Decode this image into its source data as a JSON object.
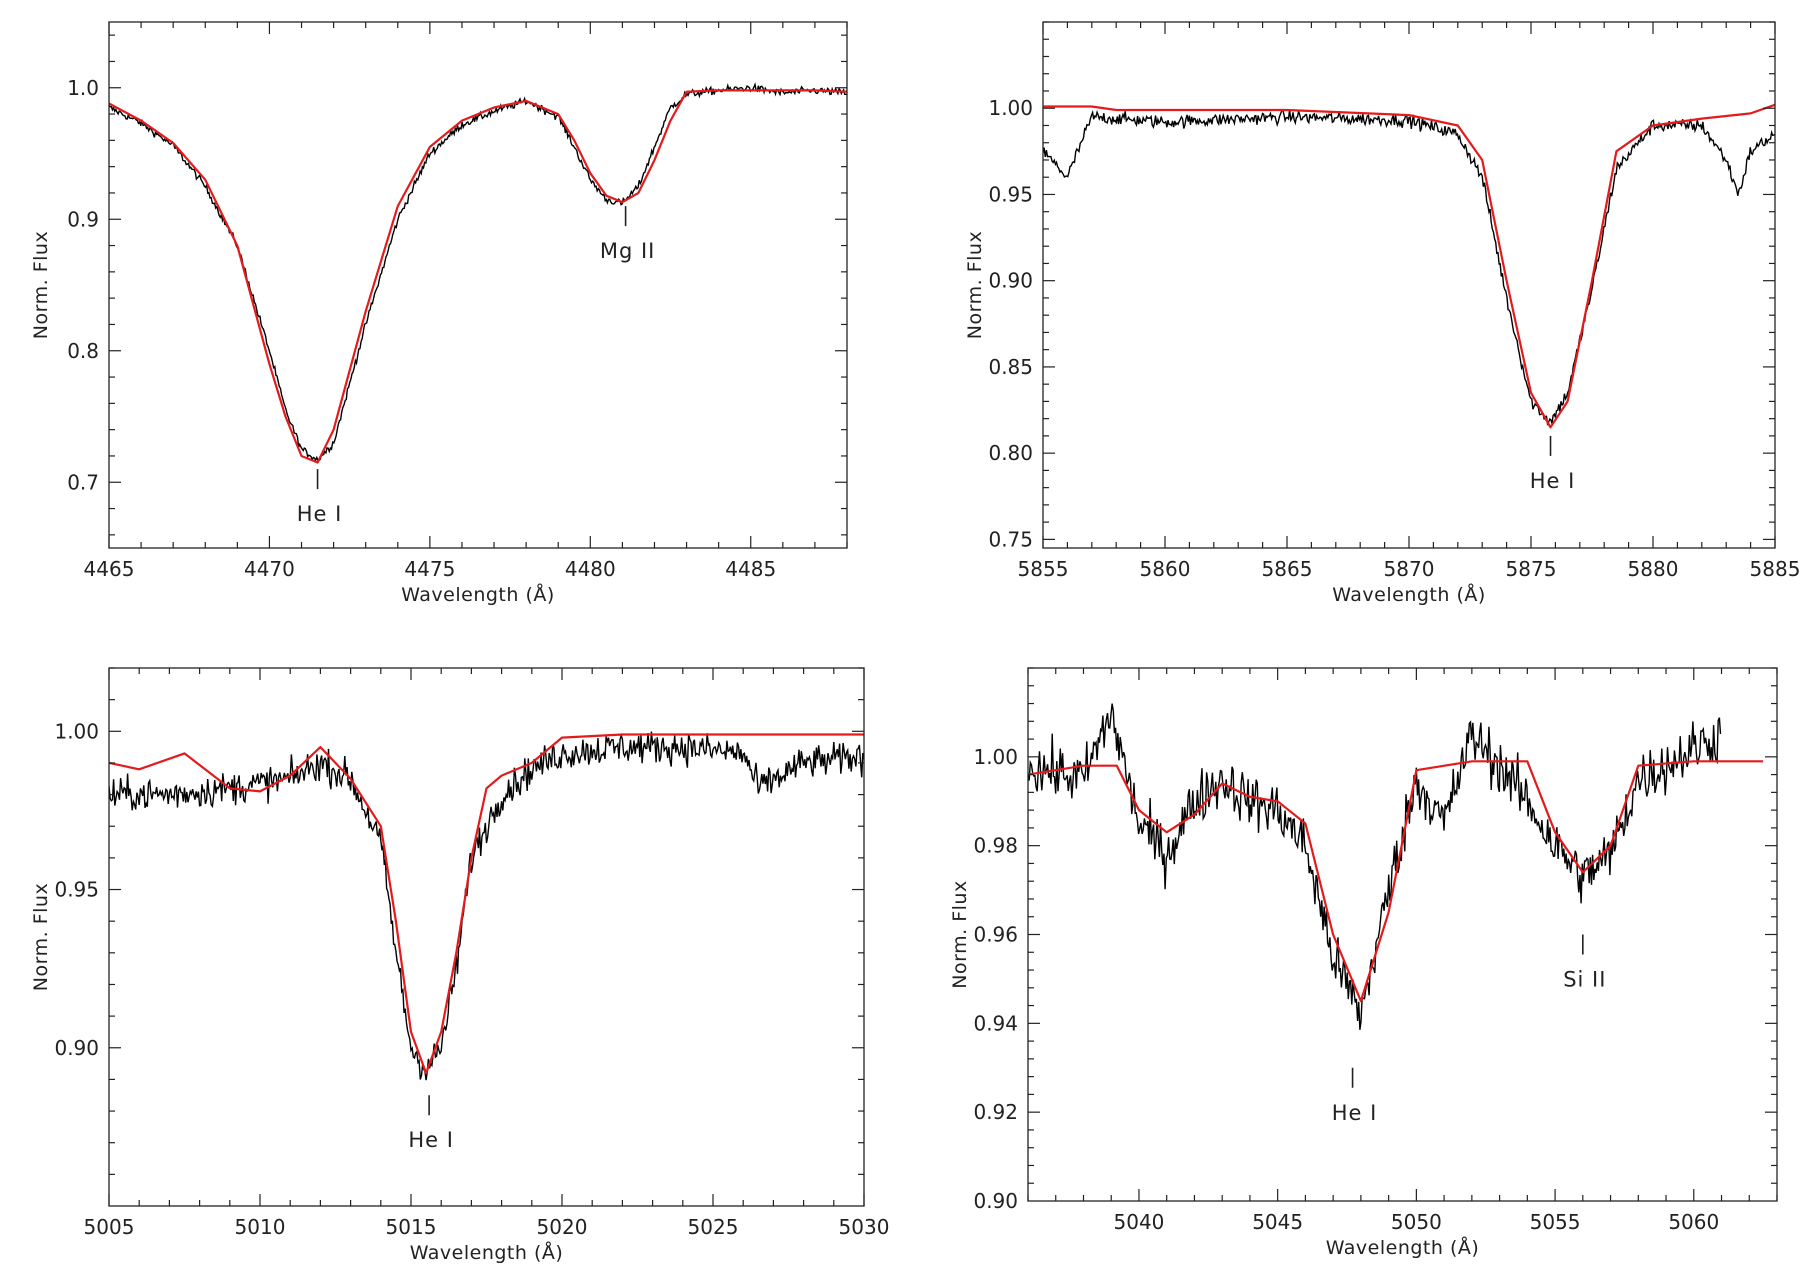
{
  "colors": {
    "observed": "#000000",
    "model": "#e41a1c",
    "axes": "#222222"
  },
  "chart_data": [
    {
      "type": "line",
      "panel": "top-left",
      "xlabel": "Wavelength (Å)",
      "ylabel": "Norm. Flux",
      "xlim": [
        4465,
        4488
      ],
      "ylim": [
        0.65,
        1.05
      ],
      "xticks": [
        4465,
        4470,
        4475,
        4480,
        4485
      ],
      "xtick_labels": [
        "4465",
        "4470",
        "4475",
        "4480",
        "4485"
      ],
      "yticks": [
        0.7,
        0.8,
        0.9,
        1.0
      ],
      "ytick_labels": [
        "0.7",
        "0.8",
        "0.9",
        "1.0"
      ],
      "continuum": 0.997,
      "model": {
        "name": "Model",
        "x": [
          4465,
          4466,
          4467,
          4468,
          4469,
          4470,
          4470.5,
          4471,
          4471.5,
          4472,
          4473,
          4474,
          4475,
          4476,
          4477,
          4478,
          4479,
          4479.5,
          4480,
          4480.5,
          4481,
          4481.5,
          4482,
          4482.5,
          4483,
          4484,
          4485,
          4486,
          4487,
          4488
        ],
        "y": [
          0.988,
          0.975,
          0.958,
          0.93,
          0.88,
          0.79,
          0.75,
          0.72,
          0.715,
          0.74,
          0.83,
          0.91,
          0.955,
          0.975,
          0.985,
          0.99,
          0.98,
          0.96,
          0.935,
          0.918,
          0.913,
          0.92,
          0.945,
          0.975,
          0.997,
          0.998,
          0.998,
          0.998,
          0.998,
          0.997
        ]
      },
      "observed": {
        "name": "Observed",
        "x": [
          4465,
          4466,
          4467,
          4468,
          4469,
          4470,
          4470.5,
          4471,
          4471.5,
          4472,
          4473,
          4474,
          4475,
          4476,
          4477,
          4478,
          4479,
          4479.5,
          4480,
          4480.5,
          4481,
          4481.5,
          4482,
          4482.5,
          4483,
          4484,
          4485,
          4486,
          4487,
          4488
        ],
        "y": [
          0.985,
          0.973,
          0.956,
          0.925,
          0.88,
          0.8,
          0.755,
          0.725,
          0.717,
          0.73,
          0.82,
          0.9,
          0.95,
          0.972,
          0.982,
          0.99,
          0.978,
          0.955,
          0.93,
          0.915,
          0.912,
          0.925,
          0.955,
          0.985,
          0.995,
          0.998,
          1.0,
          0.996,
          0.998,
          0.996
        ]
      },
      "annotations": [
        {
          "label": "He I",
          "x": 4471.5,
          "tick_y": 0.71
        },
        {
          "label": "Mg II",
          "x": 4481.1,
          "tick_y": 0.91
        }
      ]
    },
    {
      "type": "line",
      "panel": "top-right",
      "xlabel": "Wavelength (Å)",
      "ylabel": "Norm. Flux",
      "xlim": [
        5855,
        5885
      ],
      "ylim": [
        0.745,
        1.05
      ],
      "xticks": [
        5855,
        5860,
        5865,
        5870,
        5875,
        5880,
        5885
      ],
      "xtick_labels": [
        "5855",
        "5860",
        "5865",
        "5870",
        "5875",
        "5880",
        "5885"
      ],
      "yticks": [
        0.75,
        0.8,
        0.85,
        0.9,
        0.95,
        1.0
      ],
      "ytick_labels": [
        "0.75",
        "0.80",
        "0.85",
        "0.90",
        "0.95",
        "1.00"
      ],
      "continuum": 0.992,
      "model": {
        "name": "Model",
        "x": [
          5855,
          5857,
          5858,
          5860,
          5865,
          5870,
          5872,
          5873,
          5874,
          5875,
          5875.8,
          5876.5,
          5877.5,
          5878.5,
          5880,
          5882,
          5884,
          5885
        ],
        "y": [
          1.001,
          1.001,
          0.999,
          0.999,
          0.999,
          0.996,
          0.99,
          0.97,
          0.9,
          0.835,
          0.815,
          0.83,
          0.9,
          0.975,
          0.99,
          0.994,
          0.997,
          1.002
        ]
      },
      "observed": {
        "name": "Observed",
        "x": [
          5855,
          5856,
          5857,
          5860,
          5865,
          5870,
          5872,
          5873,
          5874,
          5875,
          5875.8,
          5876.5,
          5877.5,
          5878.5,
          5880,
          5882,
          5883,
          5883.5,
          5884,
          5885
        ],
        "y": [
          0.975,
          0.96,
          0.995,
          0.992,
          0.995,
          0.993,
          0.985,
          0.96,
          0.89,
          0.83,
          0.818,
          0.835,
          0.895,
          0.965,
          0.99,
          0.99,
          0.97,
          0.95,
          0.975,
          0.985
        ]
      },
      "annotations": [
        {
          "label": "He I",
          "x": 5875.8,
          "tick_y": 0.81
        }
      ]
    },
    {
      "type": "line",
      "panel": "bottom-left",
      "xlabel": "Wavelength (Å)",
      "ylabel": "Norm. Flux",
      "xlim": [
        5005,
        5030
      ],
      "ylim": [
        0.85,
        1.02
      ],
      "xticks": [
        5005,
        5010,
        5015,
        5020,
        5025,
        5030
      ],
      "xtick_labels": [
        "5005",
        "5010",
        "5015",
        "5020",
        "5025",
        "5030"
      ],
      "yticks": [
        0.9,
        0.95,
        1.0
      ],
      "ytick_labels": [
        "0.90",
        "0.95",
        "1.00"
      ],
      "continuum": 0.985,
      "model": {
        "name": "Model",
        "x": [
          5005,
          5006,
          5007.5,
          5009,
          5010,
          5011,
          5012,
          5013,
          5014,
          5014.5,
          5015,
          5015.5,
          5016,
          5016.5,
          5017,
          5017.5,
          5018,
          5019,
          5020,
          5022,
          5025,
          5028,
          5030
        ],
        "y": [
          0.99,
          0.988,
          0.993,
          0.982,
          0.981,
          0.986,
          0.995,
          0.985,
          0.97,
          0.94,
          0.905,
          0.892,
          0.905,
          0.93,
          0.96,
          0.982,
          0.986,
          0.99,
          0.998,
          0.999,
          0.999,
          0.999,
          0.999
        ]
      },
      "observed": {
        "name": "Observed",
        "x": [
          5005,
          5007,
          5009,
          5011,
          5012,
          5013,
          5014,
          5014.5,
          5015,
          5015.5,
          5016,
          5016.5,
          5017,
          5017.5,
          5018,
          5019,
          5020,
          5022,
          5024,
          5026,
          5026.5,
          5028,
          5030
        ],
        "y": [
          0.98,
          0.98,
          0.982,
          0.985,
          0.99,
          0.985,
          0.965,
          0.93,
          0.9,
          0.893,
          0.9,
          0.925,
          0.96,
          0.97,
          0.98,
          0.988,
          0.993,
          0.995,
          0.995,
          0.993,
          0.982,
          0.99,
          0.992
        ]
      },
      "annotations": [
        {
          "label": "He I",
          "x": 5015.6,
          "tick_y": 0.885
        }
      ]
    },
    {
      "type": "line",
      "panel": "bottom-right",
      "xlabel": "Wavelength (Å)",
      "ylabel": "Norm. Flux",
      "xlim": [
        5036,
        5063
      ],
      "ylim": [
        0.9,
        1.02
      ],
      "xticks": [
        5040,
        5045,
        5050,
        5055,
        5060
      ],
      "xtick_labels": [
        "5040",
        "5045",
        "5050",
        "5055",
        "5060"
      ],
      "yticks": [
        0.9,
        0.92,
        0.94,
        0.96,
        0.98,
        1.0
      ],
      "ytick_labels": [
        "0.90",
        "0.92",
        "0.94",
        "0.96",
        "0.98",
        "1.00"
      ],
      "continuum": 0.995,
      "model": {
        "name": "Model",
        "x": [
          5036,
          5038,
          5039.2,
          5040,
          5041,
          5042,
          5043,
          5044,
          5045,
          5046,
          5047,
          5048,
          5049,
          5050,
          5052,
          5054,
          5055,
          5056,
          5057,
          5058,
          5060,
          5062.5
        ],
        "y": [
          0.996,
          0.998,
          0.998,
          0.988,
          0.983,
          0.987,
          0.994,
          0.991,
          0.99,
          0.985,
          0.96,
          0.945,
          0.965,
          0.997,
          0.999,
          0.999,
          0.983,
          0.974,
          0.98,
          0.998,
          0.999,
          0.999
        ]
      },
      "observed": {
        "name": "Observed",
        "x": [
          5036,
          5038,
          5039,
          5040,
          5041,
          5042,
          5043,
          5044,
          5045,
          5046,
          5047,
          5048,
          5049,
          5050,
          5051,
          5052,
          5053,
          5054,
          5055,
          5056,
          5057,
          5058,
          5059,
          5060,
          5061
        ],
        "y": [
          0.998,
          0.995,
          1.01,
          0.985,
          0.978,
          0.99,
          0.995,
          0.99,
          0.988,
          0.98,
          0.955,
          0.942,
          0.97,
          0.995,
          0.985,
          1.005,
          0.998,
          0.99,
          0.98,
          0.973,
          0.978,
          0.995,
          0.998,
          1.002,
          1.005
        ]
      },
      "annotations": [
        {
          "label": "He I",
          "x": 5047.7,
          "tick_y": 0.93
        },
        {
          "label": "Si II",
          "x": 5056,
          "tick_y": 0.96
        }
      ]
    }
  ]
}
